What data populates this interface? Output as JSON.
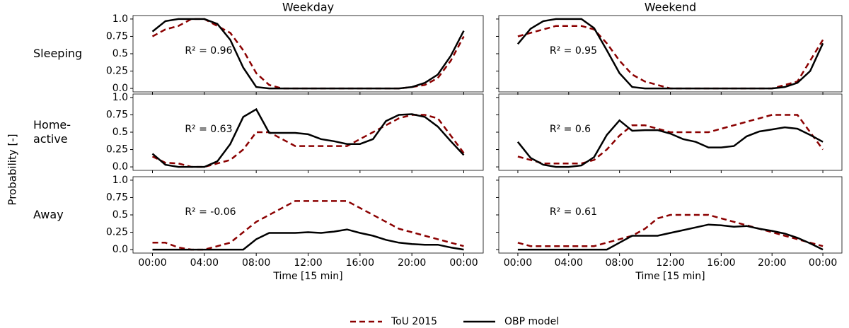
{
  "ylabel": "Probability [-]",
  "chart_data": [
    {
      "type": "line",
      "title": "Weekday",
      "row_label": "Sleeping",
      "annotation": "R² = 0.96",
      "x": [
        0,
        1,
        2,
        3,
        4,
        5,
        6,
        7,
        8,
        9,
        10,
        11,
        12,
        13,
        14,
        15,
        16,
        17,
        18,
        19,
        20,
        21,
        22,
        23,
        24
      ],
      "series": [
        {
          "name": "ToU 2015",
          "color": "#8b0000",
          "linestyle": "dashed",
          "values": [
            0.75,
            0.85,
            0.9,
            1.0,
            1.0,
            0.9,
            0.8,
            0.55,
            0.22,
            0.05,
            0,
            0,
            0,
            0,
            0,
            0,
            0,
            0,
            0,
            0,
            0.02,
            0.05,
            0.15,
            0.4,
            0.75
          ]
        },
        {
          "name": "OBP model",
          "color": "#000000",
          "linestyle": "solid",
          "values": [
            0.82,
            0.97,
            1.0,
            1.0,
            1.0,
            0.93,
            0.7,
            0.3,
            0.02,
            0,
            0,
            0,
            0,
            0,
            0,
            0,
            0,
            0,
            0,
            0,
            0.02,
            0.08,
            0.2,
            0.47,
            0.83
          ]
        }
      ],
      "xlim": [
        -1.5,
        25.5
      ],
      "ylim": [
        -0.05,
        1.05
      ],
      "xticks": [
        {
          "value": 0,
          "label": "00:00"
        },
        {
          "value": 4,
          "label": "04:00"
        },
        {
          "value": 8,
          "label": "08:00"
        },
        {
          "value": 12,
          "label": "12:00"
        },
        {
          "value": 16,
          "label": "16:00"
        },
        {
          "value": 20,
          "label": "20:00"
        },
        {
          "value": 24,
          "label": "00:00"
        }
      ],
      "yticks": [
        {
          "value": 0,
          "label": "0.0"
        },
        0.25,
        0.5,
        0.75,
        {
          "value": 1,
          "label": "1.0"
        }
      ]
    },
    {
      "type": "line",
      "title": "Weekend",
      "annotation": "R² = 0.95",
      "x": [
        0,
        1,
        2,
        3,
        4,
        5,
        6,
        7,
        8,
        9,
        10,
        11,
        12,
        13,
        14,
        15,
        16,
        17,
        18,
        19,
        20,
        21,
        22,
        23,
        24
      ],
      "series": [
        {
          "name": "ToU 2015",
          "color": "#8b0000",
          "linestyle": "dashed",
          "values": [
            0.75,
            0.8,
            0.85,
            0.9,
            0.9,
            0.9,
            0.85,
            0.65,
            0.4,
            0.2,
            0.1,
            0.05,
            0,
            0,
            0,
            0,
            0,
            0,
            0,
            0,
            0,
            0.05,
            0.1,
            0.4,
            0.7
          ]
        },
        {
          "name": "OBP model",
          "color": "#000000",
          "linestyle": "solid",
          "values": [
            0.64,
            0.86,
            0.97,
            1.0,
            1.0,
            1.0,
            0.87,
            0.55,
            0.22,
            0.02,
            0,
            0,
            0,
            0,
            0,
            0,
            0,
            0,
            0,
            0,
            0,
            0.02,
            0.08,
            0.25,
            0.65
          ]
        }
      ],
      "xlim": [
        -1.5,
        25.5
      ],
      "ylim": [
        -0.05,
        1.05
      ],
      "xticks": [
        {
          "value": 0,
          "label": "00:00"
        },
        {
          "value": 4,
          "label": "04:00"
        },
        {
          "value": 8,
          "label": "08:00"
        },
        {
          "value": 12,
          "label": "12:00"
        },
        {
          "value": 16,
          "label": "16:00"
        },
        {
          "value": 20,
          "label": "20:00"
        },
        {
          "value": 24,
          "label": "00:00"
        }
      ],
      "yticks": [
        {
          "value": 0,
          "label": "0.0"
        },
        0.25,
        0.5,
        0.75,
        {
          "value": 1,
          "label": "1.0"
        }
      ]
    },
    {
      "type": "line",
      "row_label": "Home-\nactive",
      "annotation": "R² = 0.63",
      "x": [
        0,
        1,
        2,
        3,
        4,
        5,
        6,
        7,
        8,
        9,
        10,
        11,
        12,
        13,
        14,
        15,
        16,
        17,
        18,
        19,
        20,
        21,
        22,
        23,
        24
      ],
      "series": [
        {
          "name": "ToU 2015",
          "color": "#8b0000",
          "linestyle": "dashed",
          "values": [
            0.15,
            0.06,
            0.05,
            0,
            0,
            0.05,
            0.1,
            0.25,
            0.5,
            0.5,
            0.4,
            0.3,
            0.3,
            0.3,
            0.3,
            0.3,
            0.4,
            0.5,
            0.6,
            0.7,
            0.75,
            0.75,
            0.7,
            0.45,
            0.2
          ]
        },
        {
          "name": "OBP model",
          "color": "#000000",
          "linestyle": "solid",
          "values": [
            0.19,
            0.03,
            0,
            0,
            0,
            0.08,
            0.33,
            0.72,
            0.83,
            0.49,
            0.49,
            0.49,
            0.47,
            0.4,
            0.37,
            0.33,
            0.33,
            0.4,
            0.66,
            0.75,
            0.76,
            0.72,
            0.58,
            0.37,
            0.17
          ]
        }
      ],
      "xlim": [
        -1.5,
        25.5
      ],
      "ylim": [
        -0.05,
        1.05
      ],
      "xticks": [
        {
          "value": 0,
          "label": "00:00"
        },
        {
          "value": 4,
          "label": "04:00"
        },
        {
          "value": 8,
          "label": "08:00"
        },
        {
          "value": 12,
          "label": "12:00"
        },
        {
          "value": 16,
          "label": "16:00"
        },
        {
          "value": 20,
          "label": "20:00"
        },
        {
          "value": 24,
          "label": "00:00"
        }
      ],
      "yticks": [
        {
          "value": 0,
          "label": "0.0"
        },
        0.25,
        0.5,
        0.75,
        {
          "value": 1,
          "label": "1.0"
        }
      ]
    },
    {
      "type": "line",
      "annotation": "R² = 0.6",
      "x": [
        0,
        1,
        2,
        3,
        4,
        5,
        6,
        7,
        8,
        9,
        10,
        11,
        12,
        13,
        14,
        15,
        16,
        17,
        18,
        19,
        20,
        21,
        22,
        23,
        24
      ],
      "series": [
        {
          "name": "ToU 2015",
          "color": "#8b0000",
          "linestyle": "dashed",
          "values": [
            0.15,
            0.1,
            0.05,
            0.05,
            0.05,
            0.05,
            0.1,
            0.25,
            0.45,
            0.6,
            0.6,
            0.55,
            0.5,
            0.5,
            0.5,
            0.5,
            0.55,
            0.6,
            0.65,
            0.7,
            0.75,
            0.75,
            0.75,
            0.5,
            0.25
          ]
        },
        {
          "name": "OBP model",
          "color": "#000000",
          "linestyle": "solid",
          "values": [
            0.36,
            0.13,
            0.03,
            0,
            0,
            0.02,
            0.14,
            0.46,
            0.67,
            0.52,
            0.53,
            0.53,
            0.48,
            0.4,
            0.36,
            0.28,
            0.28,
            0.3,
            0.44,
            0.51,
            0.54,
            0.57,
            0.55,
            0.46,
            0.36
          ]
        }
      ],
      "xlim": [
        -1.5,
        25.5
      ],
      "ylim": [
        -0.05,
        1.05
      ],
      "xticks": [
        {
          "value": 0,
          "label": "00:00"
        },
        {
          "value": 4,
          "label": "04:00"
        },
        {
          "value": 8,
          "label": "08:00"
        },
        {
          "value": 12,
          "label": "12:00"
        },
        {
          "value": 16,
          "label": "16:00"
        },
        {
          "value": 20,
          "label": "20:00"
        },
        {
          "value": 24,
          "label": "00:00"
        }
      ],
      "yticks": [
        {
          "value": 0,
          "label": "0.0"
        },
        0.25,
        0.5,
        0.75,
        {
          "value": 1,
          "label": "1.0"
        }
      ]
    },
    {
      "type": "line",
      "row_label": "Away",
      "annotation": "R² = -0.06",
      "xlabel": "Time [15 min]",
      "x": [
        0,
        1,
        2,
        3,
        4,
        5,
        6,
        7,
        8,
        9,
        10,
        11,
        12,
        13,
        14,
        15,
        16,
        17,
        18,
        19,
        20,
        21,
        22,
        23,
        24
      ],
      "series": [
        {
          "name": "ToU 2015",
          "color": "#8b0000",
          "linestyle": "dashed",
          "values": [
            0.1,
            0.1,
            0.03,
            0,
            0,
            0.05,
            0.1,
            0.25,
            0.4,
            0.5,
            0.6,
            0.7,
            0.7,
            0.7,
            0.7,
            0.7,
            0.6,
            0.5,
            0.4,
            0.3,
            0.25,
            0.2,
            0.15,
            0.1,
            0.05
          ]
        },
        {
          "name": "OBP model",
          "color": "#000000",
          "linestyle": "solid",
          "values": [
            0,
            0,
            0,
            0,
            0,
            0,
            0,
            0,
            0.15,
            0.24,
            0.24,
            0.24,
            0.25,
            0.24,
            0.26,
            0.29,
            0.24,
            0.2,
            0.14,
            0.1,
            0.08,
            0.07,
            0.07,
            0.03,
            0
          ]
        }
      ],
      "xlim": [
        -1.5,
        25.5
      ],
      "ylim": [
        -0.05,
        1.05
      ],
      "xticks": [
        {
          "value": 0,
          "label": "00:00"
        },
        {
          "value": 4,
          "label": "04:00"
        },
        {
          "value": 8,
          "label": "08:00"
        },
        {
          "value": 12,
          "label": "12:00"
        },
        {
          "value": 16,
          "label": "16:00"
        },
        {
          "value": 20,
          "label": "20:00"
        },
        {
          "value": 24,
          "label": "00:00"
        }
      ],
      "yticks": [
        {
          "value": 0,
          "label": "0.0"
        },
        0.25,
        0.5,
        0.75,
        {
          "value": 1,
          "label": "1.0"
        }
      ]
    },
    {
      "type": "line",
      "annotation": "R² = 0.61",
      "xlabel": "Time [15 min]",
      "x": [
        0,
        1,
        2,
        3,
        4,
        5,
        6,
        7,
        8,
        9,
        10,
        11,
        12,
        13,
        14,
        15,
        16,
        17,
        18,
        19,
        20,
        21,
        22,
        23,
        24
      ],
      "series": [
        {
          "name": "ToU 2015",
          "color": "#8b0000",
          "linestyle": "dashed",
          "values": [
            0.1,
            0.05,
            0.05,
            0.05,
            0.05,
            0.05,
            0.05,
            0.1,
            0.15,
            0.2,
            0.3,
            0.45,
            0.5,
            0.5,
            0.5,
            0.5,
            0.45,
            0.4,
            0.35,
            0.3,
            0.25,
            0.2,
            0.15,
            0.1,
            0.05
          ]
        },
        {
          "name": "OBP model",
          "color": "#000000",
          "linestyle": "solid",
          "values": [
            0,
            0,
            0,
            0,
            0,
            0,
            0,
            0,
            0.1,
            0.2,
            0.2,
            0.2,
            0.24,
            0.28,
            0.32,
            0.36,
            0.35,
            0.33,
            0.34,
            0.3,
            0.27,
            0.23,
            0.17,
            0.09,
            0
          ]
        }
      ],
      "xlim": [
        -1.5,
        25.5
      ],
      "ylim": [
        -0.05,
        1.05
      ],
      "xticks": [
        {
          "value": 0,
          "label": "00:00"
        },
        {
          "value": 4,
          "label": "04:00"
        },
        {
          "value": 8,
          "label": "08:00"
        },
        {
          "value": 12,
          "label": "12:00"
        },
        {
          "value": 16,
          "label": "16:00"
        },
        {
          "value": 20,
          "label": "20:00"
        },
        {
          "value": 24,
          "label": "00:00"
        }
      ],
      "yticks": [
        {
          "value": 0,
          "label": "0.0"
        },
        0.25,
        0.5,
        0.75,
        {
          "value": 1,
          "label": "1.0"
        }
      ]
    }
  ]
}
